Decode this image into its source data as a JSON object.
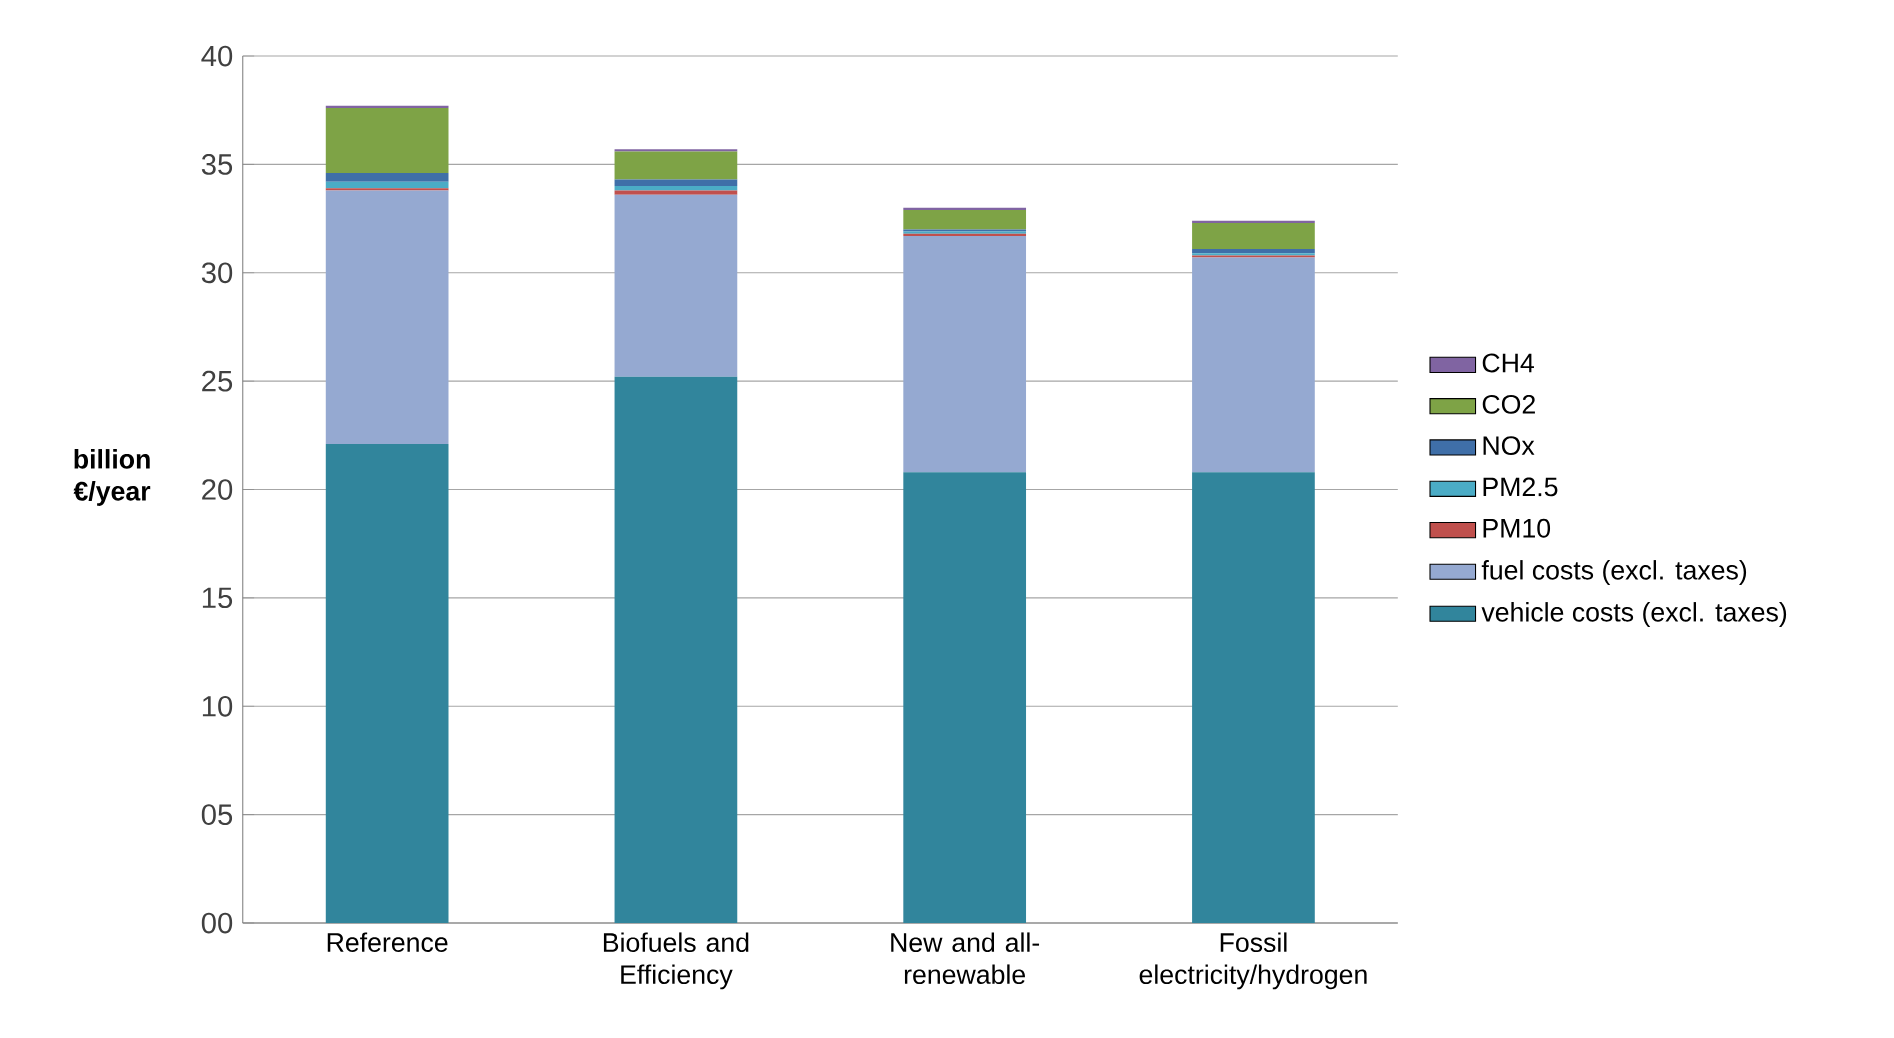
{
  "chart_data": {
    "type": "bar",
    "stacked": true,
    "ylabel": "billion €/year",
    "categories": [
      "Reference",
      "Biofuels and Efficiency",
      "New and all-renewable",
      "Fossil electricity/hydrogen"
    ],
    "series": [
      {
        "name": "vehicle costs (excl. taxes)",
        "color": "#31859c",
        "values": [
          22.1,
          25.2,
          20.8,
          20.8
        ]
      },
      {
        "name": "fuel costs (excl. taxes)",
        "color": "#95a9d1",
        "values": [
          11.7,
          8.4,
          10.9,
          9.9
        ]
      },
      {
        "name": "PM10",
        "color": "#c0504d",
        "values": [
          0.1,
          0.2,
          0.1,
          0.1
        ]
      },
      {
        "name": "PM2.5",
        "color": "#4bacc6",
        "values": [
          0.3,
          0.2,
          0.1,
          0.1
        ]
      },
      {
        "name": "NOx",
        "color": "#3f6fa8",
        "values": [
          0.4,
          0.3,
          0.1,
          0.2
        ]
      },
      {
        "name": "CO2",
        "color": "#7ea346",
        "values": [
          3.0,
          1.3,
          0.9,
          1.2
        ]
      },
      {
        "name": "CH4",
        "color": "#8064a2",
        "values": [
          0.1,
          0.1,
          0.1,
          0.1
        ]
      }
    ],
    "ylim": [
      0,
      40
    ],
    "yticks": [
      {
        "value": 0,
        "label": "00"
      },
      {
        "value": 5,
        "label": "05"
      },
      10,
      15,
      20,
      25,
      30,
      35,
      40
    ],
    "grid": "y",
    "legend": "right"
  }
}
